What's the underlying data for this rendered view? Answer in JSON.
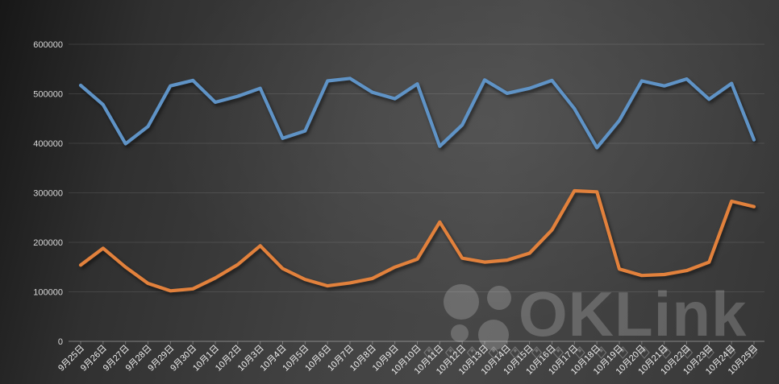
{
  "chart_data": {
    "type": "line",
    "title": "",
    "categories": [
      "9月25日",
      "9月26日",
      "9月27日",
      "9月28日",
      "9月29日",
      "9月30日",
      "10月1日",
      "10月2日",
      "10月3日",
      "10月4日",
      "10月5日",
      "10月6日",
      "10月7日",
      "10月8日",
      "10月9日",
      "10月10日",
      "10月11日",
      "10月12日",
      "10月13日",
      "10月14日",
      "10月15日",
      "10月16日",
      "10月17日",
      "10月18日",
      "10月19日",
      "10月20日",
      "10月21日",
      "10月22日",
      "10月23日",
      "10月24日",
      "10月25日"
    ],
    "series": [
      {
        "name": "blue",
        "color": "#5f93c6",
        "values": [
          517000,
          478000,
          399000,
          434000,
          516000,
          527000,
          483000,
          495000,
          511000,
          410000,
          425000,
          526000,
          531000,
          503000,
          490000,
          520000,
          394000,
          437000,
          528000,
          501000,
          511000,
          527000,
          470000,
          391000,
          446000,
          526000,
          516000,
          530000,
          489000,
          521000,
          407000
        ]
      },
      {
        "name": "orange",
        "color": "#e2813c",
        "values": [
          154000,
          188000,
          150000,
          117000,
          102000,
          106000,
          128000,
          155000,
          193000,
          147000,
          125000,
          112000,
          118000,
          127000,
          150000,
          166000,
          241000,
          168000,
          160000,
          164000,
          178000,
          225000,
          304000,
          302000,
          146000,
          133000,
          135000,
          143000,
          160000,
          283000,
          272000
        ]
      }
    ],
    "ylim": [
      0,
      600000
    ],
    "ytick_interval": 100000,
    "ytick_labels": [
      "0",
      "100000",
      "200000",
      "300000",
      "400000",
      "500000",
      "600000"
    ],
    "grid": true,
    "legend": "none",
    "x_label_rotation_deg": -45
  },
  "watermark": {
    "text": "OKLink"
  }
}
